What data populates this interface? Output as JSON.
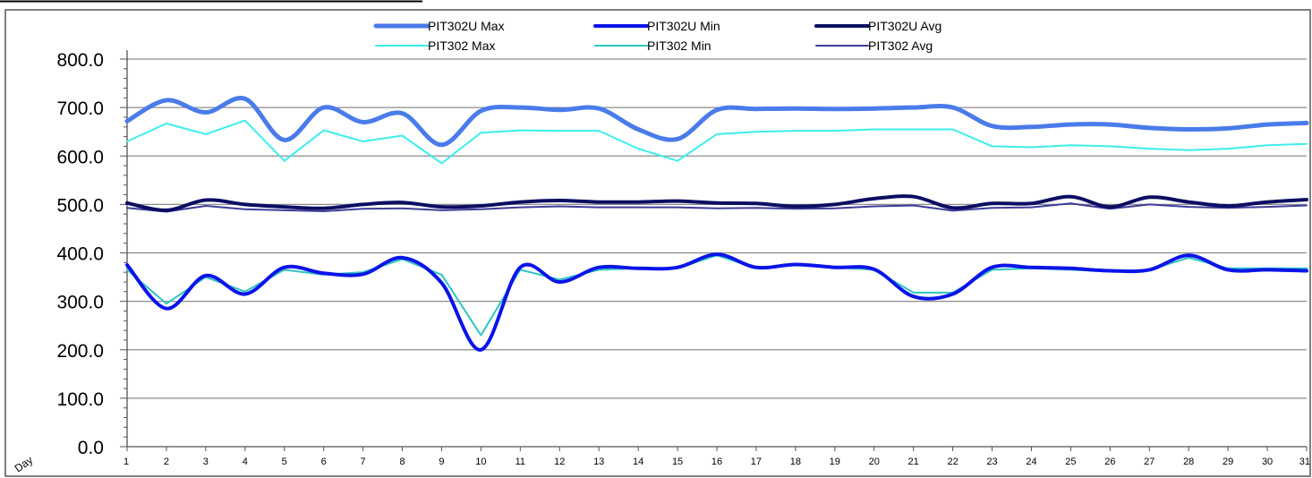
{
  "chart_data": {
    "type": "line",
    "xlabel": "Day",
    "ylabel": "",
    "ylim": [
      0,
      800
    ],
    "yticks": [
      "0.0",
      "100.0",
      "200.0",
      "300.0",
      "400.0",
      "500.0",
      "600.0",
      "700.0",
      "800.0"
    ],
    "grid": true,
    "legend": "top-center",
    "x": [
      1,
      2,
      3,
      4,
      5,
      6,
      7,
      8,
      9,
      10,
      11,
      12,
      13,
      14,
      15,
      16,
      17,
      18,
      19,
      20,
      21,
      22,
      23,
      24,
      25,
      26,
      27,
      28,
      29,
      30,
      31
    ],
    "series": [
      {
        "name": "PIT302U Max",
        "color": "#4A7BEA",
        "width": 5,
        "smooth": true,
        "values": [
          672,
          715,
          690,
          718,
          633,
          700,
          670,
          688,
          623,
          693,
          700,
          695,
          698,
          655,
          635,
          695,
          697,
          698,
          697,
          698,
          700,
          700,
          662,
          660,
          665,
          665,
          658,
          655,
          657,
          665,
          668
        ]
      },
      {
        "name": "PIT302U Min",
        "color": "#0A14E8",
        "width": 4,
        "smooth": true,
        "values": [
          375,
          285,
          353,
          315,
          370,
          358,
          356,
          390,
          338,
          200,
          370,
          340,
          370,
          368,
          370,
          397,
          370,
          376,
          370,
          366,
          310,
          315,
          370,
          370,
          368,
          363,
          365,
          395,
          365,
          365,
          363
        ]
      },
      {
        "name": "PIT302U Avg",
        "color": "#0B0E62",
        "width": 4,
        "smooth": true,
        "values": [
          503,
          488,
          509,
          500,
          495,
          492,
          500,
          504,
          495,
          497,
          505,
          508,
          505,
          505,
          507,
          503,
          502,
          496,
          500,
          512,
          516,
          493,
          502,
          502,
          516,
          495,
          515,
          505,
          497,
          505,
          510
        ]
      },
      {
        "name": "PIT302 Max",
        "color": "#3EEDED",
        "width": 2,
        "smooth": false,
        "values": [
          630,
          667,
          645,
          673,
          590,
          653,
          630,
          642,
          585,
          648,
          653,
          652,
          652,
          615,
          590,
          645,
          650,
          652,
          652,
          655,
          655,
          655,
          620,
          618,
          622,
          620,
          615,
          612,
          615,
          622,
          625
        ]
      },
      {
        "name": "PIT302 Min",
        "color": "#2EC5C0",
        "width": 2,
        "smooth": false,
        "values": [
          365,
          295,
          350,
          320,
          365,
          355,
          360,
          387,
          355,
          230,
          365,
          345,
          365,
          368,
          368,
          395,
          368,
          375,
          370,
          365,
          318,
          318,
          365,
          368,
          365,
          362,
          365,
          390,
          368,
          368,
          368
        ]
      },
      {
        "name": "PIT302 Avg",
        "color": "#3E3C9A",
        "width": 2,
        "smooth": false,
        "values": [
          493,
          485,
          497,
          490,
          488,
          486,
          491,
          492,
          488,
          490,
          494,
          496,
          494,
          494,
          494,
          492,
          493,
          491,
          492,
          496,
          498,
          487,
          493,
          494,
          502,
          491,
          500,
          495,
          493,
          495,
          498
        ]
      }
    ]
  }
}
